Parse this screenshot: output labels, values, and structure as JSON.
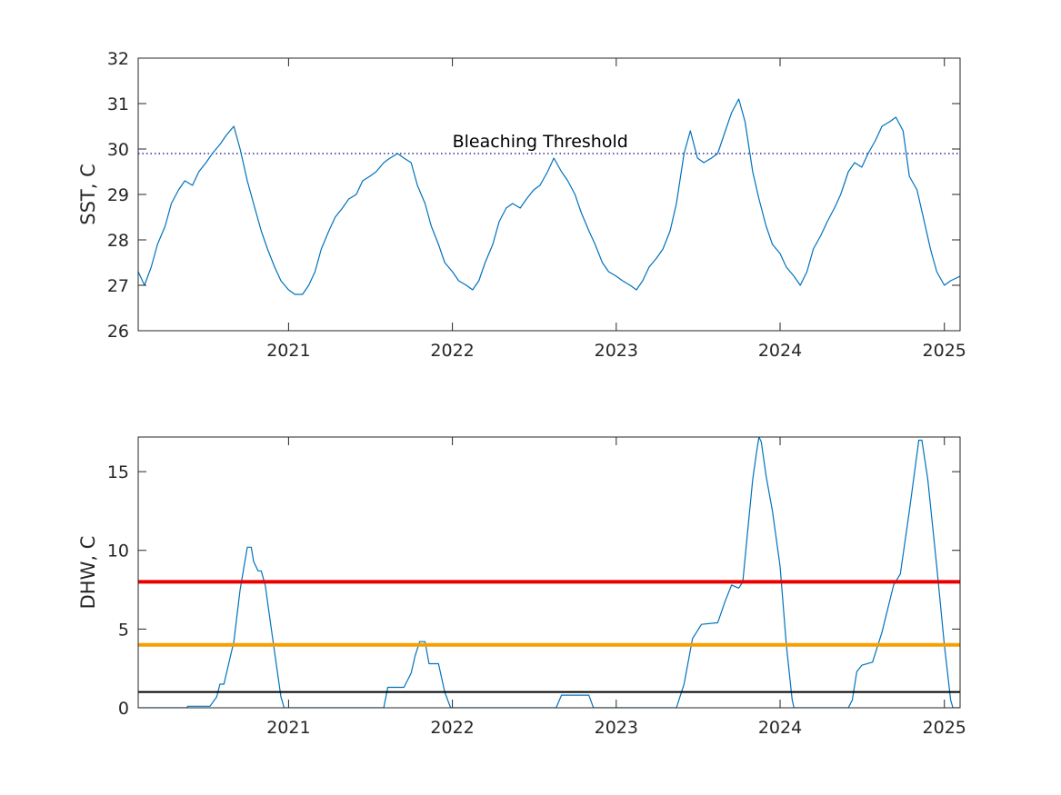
{
  "chart_data": [
    {
      "type": "line",
      "ylabel": "SST, C",
      "xlim": [
        "2020-02-01",
        "2025-02-05"
      ],
      "ylim": [
        26,
        32
      ],
      "yticks": [
        26,
        27,
        28,
        29,
        30,
        31,
        32
      ],
      "xticks": [
        {
          "date": "2021-01-01",
          "label": "2021"
        },
        {
          "date": "2022-01-01",
          "label": "2022"
        },
        {
          "date": "2023-01-01",
          "label": "2023"
        },
        {
          "date": "2024-01-01",
          "label": "2024"
        },
        {
          "date": "2025-01-01",
          "label": "2025"
        }
      ],
      "grid": false,
      "series": [
        {
          "color": "#0072bd",
          "points": [
            [
              "2020-02-01",
              27.3
            ],
            [
              "2020-02-15",
              27.0
            ],
            [
              "2020-03-01",
              27.4
            ],
            [
              "2020-03-15",
              27.9
            ],
            [
              "2020-04-01",
              28.3
            ],
            [
              "2020-04-15",
              28.8
            ],
            [
              "2020-05-01",
              29.1
            ],
            [
              "2020-05-15",
              29.3
            ],
            [
              "2020-06-01",
              29.2
            ],
            [
              "2020-06-15",
              29.5
            ],
            [
              "2020-07-01",
              29.7
            ],
            [
              "2020-07-15",
              29.9
            ],
            [
              "2020-08-01",
              30.1
            ],
            [
              "2020-08-15",
              30.3
            ],
            [
              "2020-09-01",
              30.5
            ],
            [
              "2020-09-15",
              30.0
            ],
            [
              "2020-10-01",
              29.3
            ],
            [
              "2020-10-15",
              28.8
            ],
            [
              "2020-11-01",
              28.2
            ],
            [
              "2020-11-15",
              27.8
            ],
            [
              "2020-12-01",
              27.4
            ],
            [
              "2020-12-15",
              27.1
            ],
            [
              "2021-01-01",
              26.9
            ],
            [
              "2021-01-15",
              26.8
            ],
            [
              "2021-02-01",
              26.8
            ],
            [
              "2021-02-15",
              27.0
            ],
            [
              "2021-03-01",
              27.3
            ],
            [
              "2021-03-15",
              27.8
            ],
            [
              "2021-04-01",
              28.2
            ],
            [
              "2021-04-15",
              28.5
            ],
            [
              "2021-05-01",
              28.7
            ],
            [
              "2021-05-15",
              28.9
            ],
            [
              "2021-06-01",
              29.0
            ],
            [
              "2021-06-15",
              29.3
            ],
            [
              "2021-07-01",
              29.4
            ],
            [
              "2021-07-15",
              29.5
            ],
            [
              "2021-08-01",
              29.7
            ],
            [
              "2021-08-15",
              29.8
            ],
            [
              "2021-09-01",
              29.9
            ],
            [
              "2021-09-15",
              29.8
            ],
            [
              "2021-10-01",
              29.7
            ],
            [
              "2021-10-15",
              29.2
            ],
            [
              "2021-11-01",
              28.8
            ],
            [
              "2021-11-15",
              28.3
            ],
            [
              "2021-12-01",
              27.9
            ],
            [
              "2021-12-15",
              27.5
            ],
            [
              "2022-01-01",
              27.3
            ],
            [
              "2022-01-15",
              27.1
            ],
            [
              "2022-02-01",
              27.0
            ],
            [
              "2022-02-15",
              26.9
            ],
            [
              "2022-03-01",
              27.1
            ],
            [
              "2022-03-15",
              27.5
            ],
            [
              "2022-04-01",
              27.9
            ],
            [
              "2022-04-15",
              28.4
            ],
            [
              "2022-05-01",
              28.7
            ],
            [
              "2022-05-15",
              28.8
            ],
            [
              "2022-06-01",
              28.7
            ],
            [
              "2022-06-15",
              28.9
            ],
            [
              "2022-07-01",
              29.1
            ],
            [
              "2022-07-15",
              29.2
            ],
            [
              "2022-08-01",
              29.5
            ],
            [
              "2022-08-15",
              29.8
            ],
            [
              "2022-09-01",
              29.5
            ],
            [
              "2022-09-15",
              29.3
            ],
            [
              "2022-10-01",
              29.0
            ],
            [
              "2022-10-15",
              28.6
            ],
            [
              "2022-11-01",
              28.2
            ],
            [
              "2022-11-15",
              27.9
            ],
            [
              "2022-12-01",
              27.5
            ],
            [
              "2022-12-15",
              27.3
            ],
            [
              "2023-01-01",
              27.2
            ],
            [
              "2023-01-15",
              27.1
            ],
            [
              "2023-02-01",
              27.0
            ],
            [
              "2023-02-15",
              26.9
            ],
            [
              "2023-03-01",
              27.1
            ],
            [
              "2023-03-15",
              27.4
            ],
            [
              "2023-04-01",
              27.6
            ],
            [
              "2023-04-15",
              27.8
            ],
            [
              "2023-05-01",
              28.2
            ],
            [
              "2023-05-15",
              28.8
            ],
            [
              "2023-06-01",
              29.9
            ],
            [
              "2023-06-15",
              30.4
            ],
            [
              "2023-07-01",
              29.8
            ],
            [
              "2023-07-15",
              29.7
            ],
            [
              "2023-08-01",
              29.8
            ],
            [
              "2023-08-15",
              29.9
            ],
            [
              "2023-09-01",
              30.4
            ],
            [
              "2023-09-15",
              30.8
            ],
            [
              "2023-10-01",
              31.1
            ],
            [
              "2023-10-15",
              30.6
            ],
            [
              "2023-11-01",
              29.5
            ],
            [
              "2023-11-15",
              28.9
            ],
            [
              "2023-12-01",
              28.3
            ],
            [
              "2023-12-15",
              27.9
            ],
            [
              "2024-01-01",
              27.7
            ],
            [
              "2024-01-15",
              27.4
            ],
            [
              "2024-02-01",
              27.2
            ],
            [
              "2024-02-15",
              27.0
            ],
            [
              "2024-03-01",
              27.3
            ],
            [
              "2024-03-15",
              27.8
            ],
            [
              "2024-04-01",
              28.1
            ],
            [
              "2024-04-15",
              28.4
            ],
            [
              "2024-05-01",
              28.7
            ],
            [
              "2024-05-15",
              29.0
            ],
            [
              "2024-06-01",
              29.5
            ],
            [
              "2024-06-15",
              29.7
            ],
            [
              "2024-07-01",
              29.6
            ],
            [
              "2024-07-15",
              29.9
            ],
            [
              "2024-08-01",
              30.2
            ],
            [
              "2024-08-15",
              30.5
            ],
            [
              "2024-09-01",
              30.6
            ],
            [
              "2024-09-15",
              30.7
            ],
            [
              "2024-10-01",
              30.4
            ],
            [
              "2024-10-15",
              29.4
            ],
            [
              "2024-11-01",
              29.1
            ],
            [
              "2024-11-15",
              28.5
            ],
            [
              "2024-12-01",
              27.8
            ],
            [
              "2024-12-15",
              27.3
            ],
            [
              "2025-01-01",
              27.0
            ],
            [
              "2025-01-15",
              27.1
            ],
            [
              "2025-02-05",
              27.2
            ]
          ]
        }
      ],
      "threshold": {
        "value": 29.9,
        "label": "Bleaching Threshold",
        "color": "#00008b",
        "label_date": "2022-01-01"
      }
    },
    {
      "type": "line",
      "ylabel": "DHW, C",
      "xlim": [
        "2020-02-01",
        "2025-02-05"
      ],
      "ylim": [
        0,
        17.2
      ],
      "yticks": [
        0,
        5,
        10,
        15
      ],
      "xticks": [
        {
          "date": "2021-01-01",
          "label": "2021"
        },
        {
          "date": "2022-01-01",
          "label": "2022"
        },
        {
          "date": "2023-01-01",
          "label": "2023"
        },
        {
          "date": "2024-01-01",
          "label": "2024"
        },
        {
          "date": "2025-01-01",
          "label": "2025"
        }
      ],
      "grid": false,
      "hlines": [
        {
          "value": 8,
          "color": "#e60000"
        },
        {
          "value": 4,
          "color": "#f5a000"
        },
        {
          "value": 1,
          "color": "#000000"
        }
      ],
      "series": [
        {
          "color": "#0072bd",
          "points": [
            [
              "2020-02-01",
              0
            ],
            [
              "2020-05-20",
              0
            ],
            [
              "2020-05-21",
              0.1
            ],
            [
              "2020-07-10",
              0.1
            ],
            [
              "2020-07-25",
              0.7
            ],
            [
              "2020-08-01",
              1.5
            ],
            [
              "2020-08-10",
              1.5
            ],
            [
              "2020-09-01",
              4.2
            ],
            [
              "2020-09-15",
              7.5
            ],
            [
              "2020-10-01",
              10.2
            ],
            [
              "2020-10-10",
              10.2
            ],
            [
              "2020-10-15",
              9.3
            ],
            [
              "2020-10-25",
              8.7
            ],
            [
              "2020-11-01",
              8.7
            ],
            [
              "2020-11-10",
              7.8
            ],
            [
              "2020-12-01",
              3.5
            ],
            [
              "2020-12-15",
              0.7
            ],
            [
              "2020-12-22",
              0
            ],
            [
              "2021-08-01",
              0
            ],
            [
              "2021-08-10",
              1.3
            ],
            [
              "2021-09-15",
              1.3
            ],
            [
              "2021-10-01",
              2.2
            ],
            [
              "2021-10-10",
              3.3
            ],
            [
              "2021-10-20",
              4.2
            ],
            [
              "2021-11-01",
              4.2
            ],
            [
              "2021-11-10",
              2.8
            ],
            [
              "2021-12-01",
              2.8
            ],
            [
              "2021-12-15",
              1.0
            ],
            [
              "2021-12-28",
              0
            ],
            [
              "2022-08-20",
              0
            ],
            [
              "2022-09-01",
              0.8
            ],
            [
              "2022-11-01",
              0.8
            ],
            [
              "2022-11-10",
              0.1
            ],
            [
              "2022-11-12",
              0
            ],
            [
              "2023-05-15",
              0
            ],
            [
              "2023-06-01",
              1.5
            ],
            [
              "2023-06-20",
              4.4
            ],
            [
              "2023-07-10",
              5.3
            ],
            [
              "2023-08-15",
              5.4
            ],
            [
              "2023-09-01",
              6.8
            ],
            [
              "2023-09-15",
              7.8
            ],
            [
              "2023-10-01",
              7.6
            ],
            [
              "2023-10-10",
              8.0
            ],
            [
              "2023-10-20",
              11.0
            ],
            [
              "2023-11-01",
              14.5
            ],
            [
              "2023-11-10",
              16.3
            ],
            [
              "2023-11-15",
              17.2
            ],
            [
              "2023-11-20",
              16.9
            ],
            [
              "2023-12-01",
              14.7
            ],
            [
              "2023-12-15",
              12.5
            ],
            [
              "2024-01-01",
              9.0
            ],
            [
              "2024-01-15",
              4.0
            ],
            [
              "2024-01-28",
              0.5
            ],
            [
              "2024-02-01",
              0
            ],
            [
              "2024-06-01",
              0
            ],
            [
              "2024-06-10",
              0.5
            ],
            [
              "2024-06-20",
              2.3
            ],
            [
              "2024-07-01",
              2.7
            ],
            [
              "2024-07-25",
              2.9
            ],
            [
              "2024-08-15",
              4.8
            ],
            [
              "2024-09-10",
              7.8
            ],
            [
              "2024-09-25",
              8.5
            ],
            [
              "2024-10-15",
              12.5
            ],
            [
              "2024-11-05",
              17.0
            ],
            [
              "2024-11-12",
              17.0
            ],
            [
              "2024-11-25",
              14.5
            ],
            [
              "2024-12-15",
              9.0
            ],
            [
              "2025-01-01",
              4.0
            ],
            [
              "2025-01-15",
              0.5
            ],
            [
              "2025-01-20",
              0
            ],
            [
              "2025-02-05",
              0
            ]
          ]
        }
      ]
    }
  ]
}
